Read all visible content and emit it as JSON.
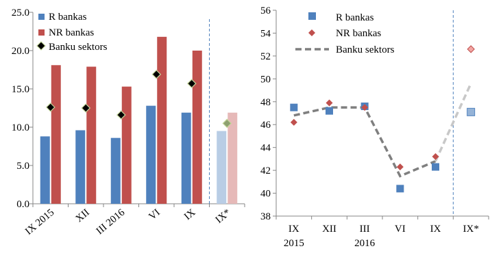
{
  "chart_data": [
    {
      "type": "bar",
      "categories": [
        "IX 2015",
        "XII",
        "III 2016",
        "VI",
        "IX",
        "IX*"
      ],
      "ylim": [
        0,
        25
      ],
      "yticks": [
        "0.0",
        "5.0",
        "10.0",
        "15.0",
        "20.0",
        "25.0"
      ],
      "series": [
        {
          "name": "R bankas",
          "kind": "bar",
          "color": "#4F81BD",
          "values": [
            8.8,
            9.6,
            8.6,
            12.8,
            11.9,
            9.5
          ]
        },
        {
          "name": "NR bankas",
          "kind": "bar",
          "color": "#C0504D",
          "values": [
            18.1,
            17.9,
            15.3,
            21.8,
            20.0,
            11.9
          ]
        },
        {
          "name": "Banku sektors",
          "kind": "marker",
          "color": "#000000",
          "values": [
            12.6,
            12.5,
            11.6,
            16.9,
            15.7,
            10.5
          ]
        }
      ],
      "projection_colors": {
        "R bankas": "#B9CDE5",
        "NR bankas": "#E6B9B8",
        "Banku sektors": "#8EA070"
      },
      "grid": false,
      "legend": "top-left"
    },
    {
      "type": "line",
      "categories": [
        "IX 2015",
        "XII",
        "III 2016",
        "VI",
        "IX",
        "IX*"
      ],
      "ylim": [
        38,
        56
      ],
      "yticks": [
        "38",
        "40",
        "42",
        "44",
        "46",
        "48",
        "50",
        "52",
        "54",
        "56"
      ],
      "series": [
        {
          "name": "R bankas",
          "kind": "square",
          "color": "#4F81BD",
          "values": [
            47.5,
            47.2,
            47.6,
            40.4,
            42.3,
            47.1
          ]
        },
        {
          "name": "NR bankas",
          "kind": "diamond",
          "color": "#C0504D",
          "values": [
            46.2,
            47.9,
            47.5,
            42.3,
            43.2,
            52.6
          ]
        },
        {
          "name": "Banku sektors",
          "kind": "dashed-line",
          "color": "#7F7F7F",
          "values": [
            46.8,
            47.5,
            47.5,
            41.5,
            42.8,
            49.6
          ]
        }
      ],
      "grid": false,
      "legend": "top-left"
    }
  ]
}
